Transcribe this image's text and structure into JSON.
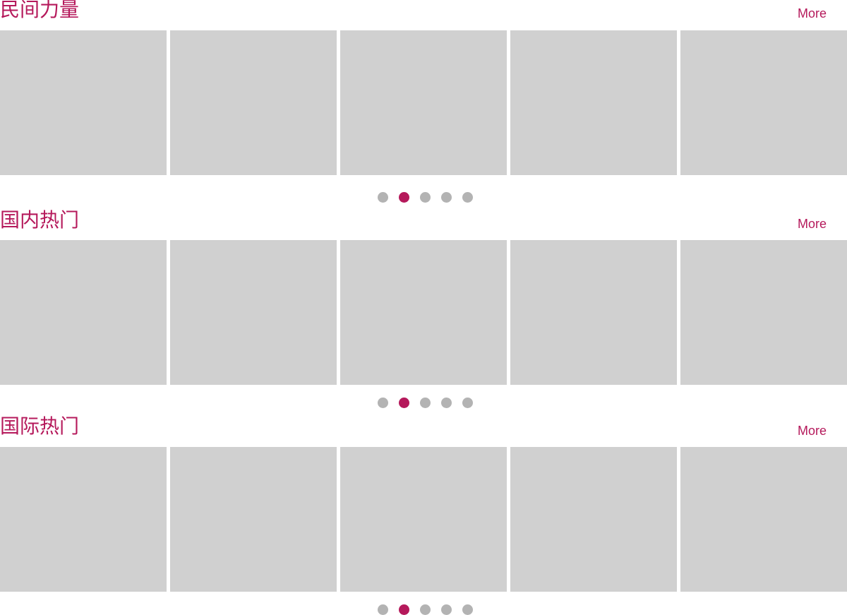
{
  "colors": {
    "accent": "#b5195b",
    "card_placeholder": "#d0d0d0",
    "dot_inactive": "#b3b3b3",
    "dot_active": "#b5195b"
  },
  "sections": [
    {
      "title": "民间力量",
      "more_label": "More",
      "cards": [
        {},
        {},
        {},
        {},
        {}
      ],
      "pagination": {
        "total": 5,
        "active": 2
      }
    },
    {
      "title": "国内热门",
      "more_label": "More",
      "cards": [
        {},
        {},
        {},
        {},
        {}
      ],
      "pagination": {
        "total": 5,
        "active": 2
      }
    },
    {
      "title": "国际热门",
      "more_label": "More",
      "cards": [
        {},
        {},
        {},
        {},
        {}
      ],
      "pagination": {
        "total": 5,
        "active": 2
      }
    }
  ]
}
